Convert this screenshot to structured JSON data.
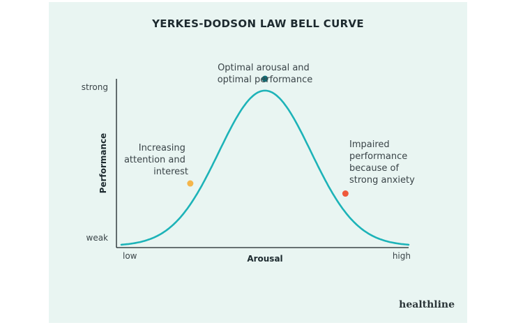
{
  "chart_data": {
    "type": "line",
    "title": "YERKES-DODSON LAW BELL CURVE",
    "xlabel": "Arousal",
    "ylabel": "Performance",
    "x_tick_labels": [
      "low",
      "high"
    ],
    "y_tick_labels": [
      "weak",
      "strong"
    ],
    "xlim": [
      0,
      1
    ],
    "ylim": [
      0,
      1
    ],
    "grid": false,
    "curve": {
      "color": "#1db3b8",
      "shape": "bell",
      "peak_x": 0.5,
      "peak_y": 0.93,
      "min_y": 0.01
    },
    "annotations": [
      {
        "name": "increasing-attention",
        "lines": [
          "Increasing",
          "attention and",
          "interest"
        ],
        "x": 0.24,
        "y": 0.38,
        "color": "#f5b54a"
      },
      {
        "name": "optimal",
        "lines": [
          "Optimal arousal and",
          "optimal performance"
        ],
        "x": 0.5,
        "y": 1.0,
        "color": "#0f6f76"
      },
      {
        "name": "impaired",
        "lines": [
          "Impaired",
          "performance",
          "because of",
          "strong anxiety"
        ],
        "x": 0.78,
        "y": 0.32,
        "color": "#ef5a3c"
      }
    ]
  },
  "brand": "healthline"
}
